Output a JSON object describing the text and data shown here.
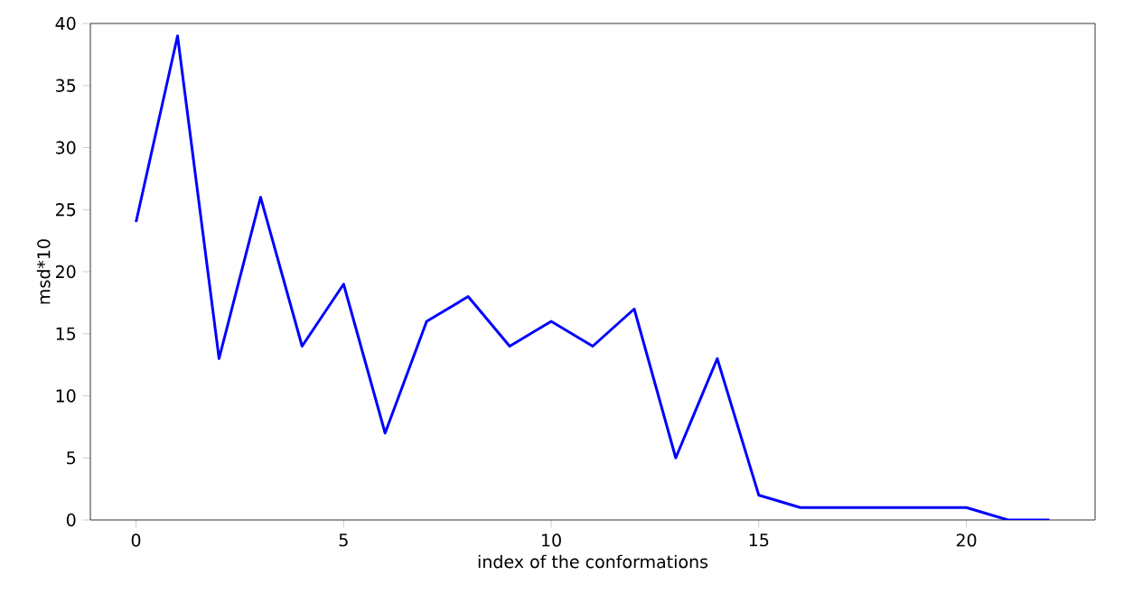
{
  "chart_data": {
    "type": "line",
    "xlabel": "index of the conformations",
    "ylabel": "msd*10",
    "x": [
      0,
      1,
      2,
      3,
      4,
      5,
      6,
      7,
      8,
      9,
      10,
      11,
      12,
      13,
      14,
      15,
      16,
      17,
      18,
      19,
      20,
      21,
      22
    ],
    "series": [
      {
        "color": "#0000ff",
        "values": [
          24,
          39,
          13,
          26,
          14,
          19,
          7,
          16,
          18,
          14,
          16,
          14,
          17,
          5,
          13,
          2,
          1,
          1,
          1,
          1,
          1,
          0,
          0
        ]
      }
    ],
    "xlim": [
      -1.1,
      23.1
    ],
    "xticks": [
      0,
      5,
      10,
      15,
      20
    ],
    "ylim": [
      0,
      40
    ],
    "yticks": [
      0,
      5,
      10,
      15,
      20,
      25,
      30,
      35,
      40
    ],
    "grid": false,
    "marker": "none",
    "line_style": "solid"
  }
}
